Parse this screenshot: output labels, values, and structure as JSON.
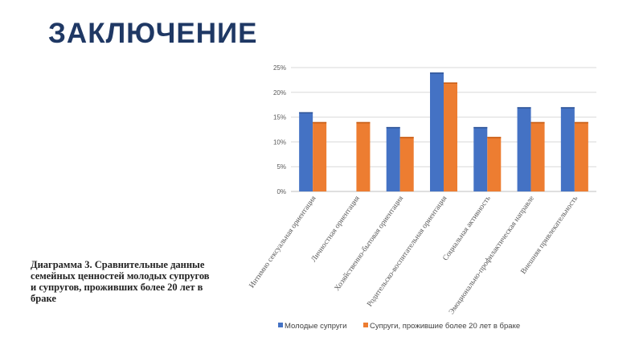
{
  "slide": {
    "title": "ЗАКЛЮЧЕНИЕ",
    "caption": "Диаграмма 3. Сравнительные данные семейных ценностей молодых супругов и супругов, проживших более 20 лет в браке"
  },
  "chart_data": {
    "type": "bar",
    "categories": [
      "Интимно сексуальная ориентация",
      "Личностная ориентация",
      "Хозяйственно-бытовая ориентация",
      "Родительско-воспитательная ориентация",
      "Социальная активность",
      "Эмоционально-профилактическая направле",
      "Внешняя привлекательность"
    ],
    "series": [
      {
        "name": "Молодые супруги",
        "values": [
          16,
          null,
          13,
          24,
          13,
          17,
          17
        ],
        "color": "#4472c4"
      },
      {
        "name": "Супруги, прожившие более 20 лет в браке",
        "values": [
          14,
          14,
          11,
          22,
          11,
          14,
          14
        ],
        "color": "#ed7d31"
      }
    ],
    "y_ticks": [
      "0%",
      "5%",
      "10%",
      "15%",
      "20%",
      "25%"
    ],
    "ylim": [
      0,
      25
    ],
    "y_unit": "%",
    "grid": true,
    "legend_position": "bottom"
  }
}
